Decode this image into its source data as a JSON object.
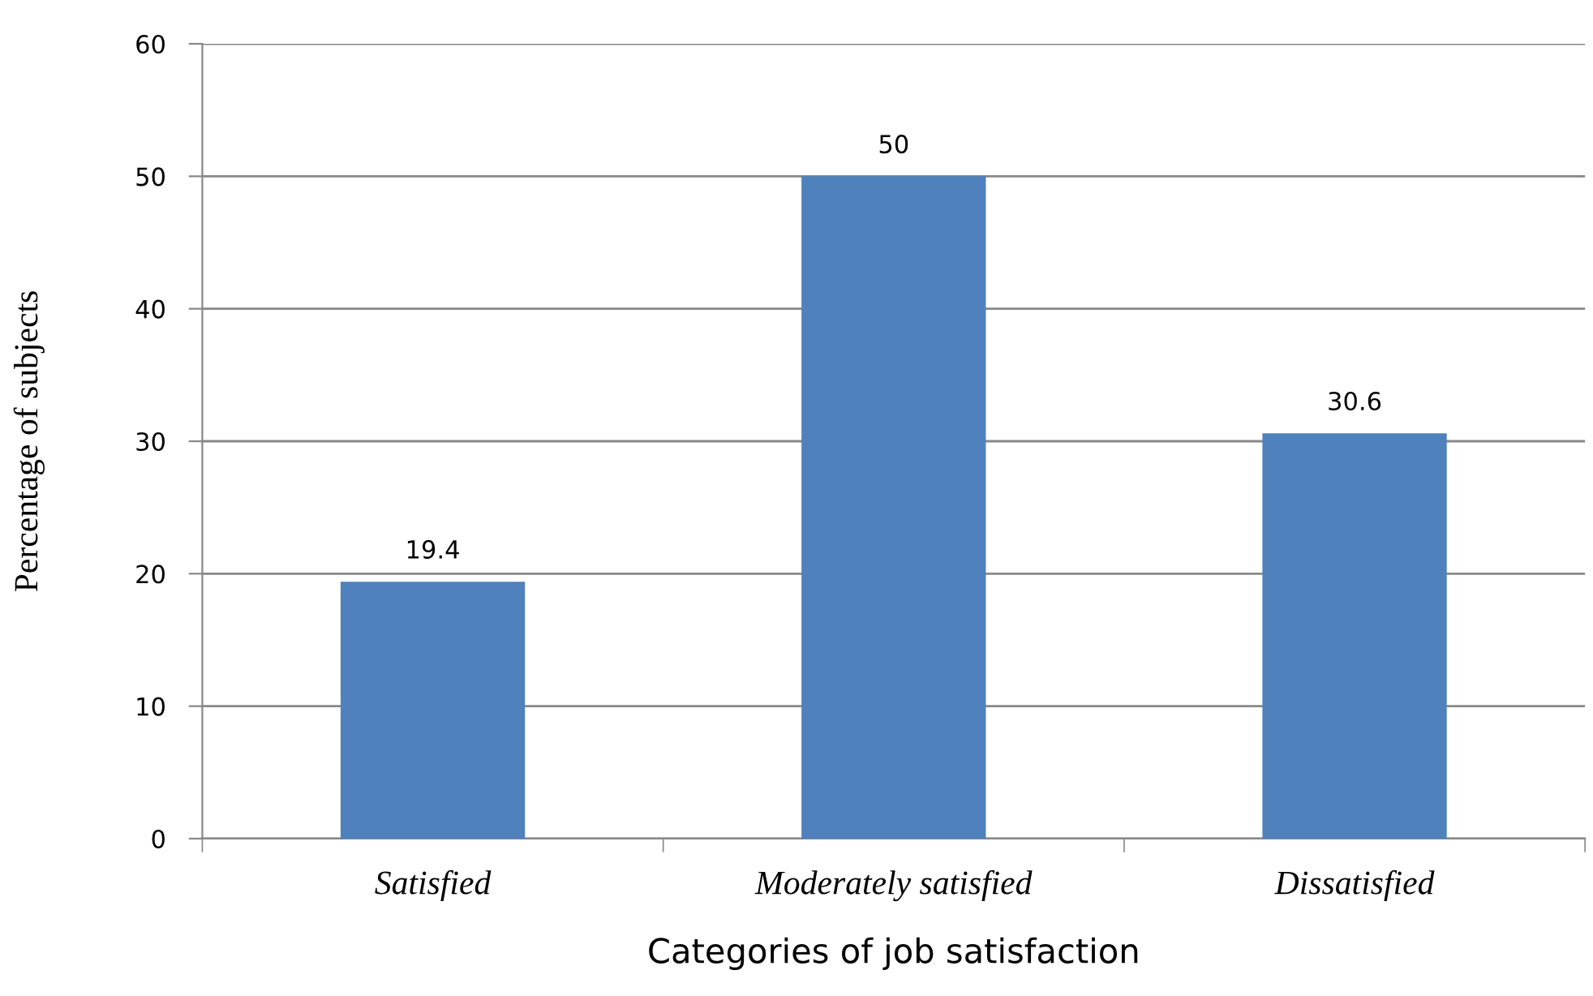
{
  "chart_data": {
    "type": "bar",
    "xlabel": "Categories of job satisfaction",
    "ylabel": "Percentage of subjects",
    "categories": [
      "Satisfied",
      "Moderately satisfied",
      "Dissatisfied"
    ],
    "values": [
      19.4,
      50,
      30.6
    ],
    "color": "#4f81bd",
    "ylim": [
      0,
      60
    ],
    "yticks": [
      0,
      10,
      20,
      30,
      40,
      50,
      60
    ],
    "grid": "y",
    "data_labels": true
  }
}
